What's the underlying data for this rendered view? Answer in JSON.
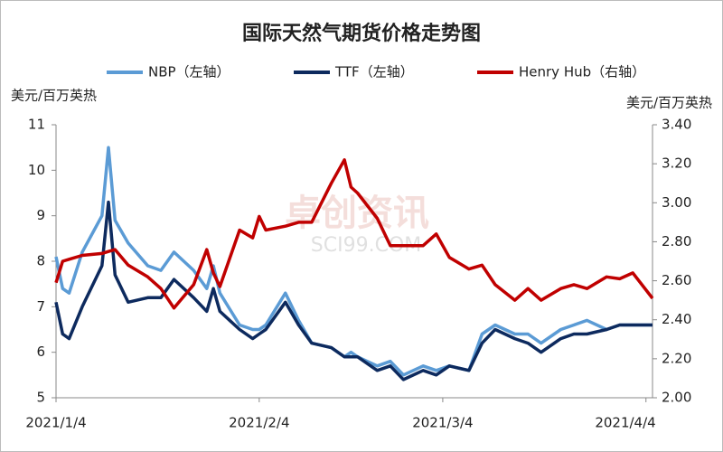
{
  "chart_data": {
    "type": "line",
    "title": "国际天然气期货价格走势图",
    "ylabel": "美元/百万英热",
    "y2label": "美元/百万英热",
    "watermark": [
      "卓创资讯",
      "SCI99.COM"
    ],
    "x": [
      "2021/1/4",
      "2021/1/5",
      "2021/1/6",
      "2021/1/8",
      "2021/1/11",
      "2021/1/12",
      "2021/1/13",
      "2021/1/15",
      "2021/1/18",
      "2021/1/20",
      "2021/1/22",
      "2021/1/25",
      "2021/1/27",
      "2021/1/28",
      "2021/1/29",
      "2021/2/1",
      "2021/2/3",
      "2021/2/4",
      "2021/2/5",
      "2021/2/8",
      "2021/2/10",
      "2021/2/12",
      "2021/2/15",
      "2021/2/17",
      "2021/2/18",
      "2021/2/19",
      "2021/2/22",
      "2021/2/24",
      "2021/2/26",
      "2021/3/1",
      "2021/3/3",
      "2021/3/5",
      "2021/3/8",
      "2021/3/10",
      "2021/3/12",
      "2021/3/15",
      "2021/3/17",
      "2021/3/19",
      "2021/3/22",
      "2021/3/24",
      "2021/3/26",
      "2021/3/29",
      "2021/3/31",
      "2021/4/2",
      "2021/4/5"
    ],
    "xlim": [
      "2021/1/4",
      "2021/4/5"
    ],
    "xticks": [
      "2021/1/4",
      "2021/2/4",
      "2021/3/4",
      "2021/4/4"
    ],
    "series": [
      {
        "name": "NBP（左轴）",
        "color": "#5b9bd5",
        "axis": "y",
        "values": [
          8.1,
          7.4,
          7.3,
          8.2,
          9.0,
          10.5,
          8.9,
          8.4,
          7.9,
          7.8,
          8.2,
          7.8,
          7.4,
          7.9,
          7.3,
          6.6,
          6.5,
          6.5,
          6.6,
          7.3,
          6.7,
          6.2,
          6.1,
          5.9,
          6.0,
          5.9,
          5.7,
          5.8,
          5.5,
          5.7,
          5.6,
          5.7,
          5.6,
          6.4,
          6.6,
          6.4,
          6.4,
          6.2,
          6.5,
          6.6,
          6.7,
          6.5,
          6.6,
          6.6,
          6.6
        ]
      },
      {
        "name": "TTF（左轴）",
        "color": "#0d2a5e",
        "axis": "y",
        "values": [
          7.1,
          6.4,
          6.3,
          7.0,
          7.9,
          9.3,
          7.7,
          7.1,
          7.2,
          7.2,
          7.6,
          7.2,
          6.9,
          7.4,
          6.9,
          6.5,
          6.3,
          6.4,
          6.5,
          7.1,
          6.6,
          6.2,
          6.1,
          5.9,
          5.9,
          5.9,
          5.6,
          5.7,
          5.4,
          5.6,
          5.5,
          5.7,
          5.6,
          6.2,
          6.5,
          6.3,
          6.2,
          6.0,
          6.3,
          6.4,
          6.4,
          6.5,
          6.6,
          6.6,
          6.6
        ]
      },
      {
        "name": "Henry Hub（右轴）",
        "color": "#c00000",
        "axis": "y2",
        "values": [
          2.59,
          2.7,
          2.71,
          2.73,
          2.74,
          2.75,
          2.76,
          2.68,
          2.62,
          2.56,
          2.46,
          2.58,
          2.76,
          2.64,
          2.57,
          2.86,
          2.82,
          2.93,
          2.86,
          2.88,
          2.9,
          2.9,
          3.1,
          3.22,
          3.08,
          3.05,
          2.92,
          2.78,
          2.78,
          2.78,
          2.84,
          2.72,
          2.66,
          2.68,
          2.58,
          2.5,
          2.56,
          2.5,
          2.56,
          2.58,
          2.56,
          2.62,
          2.61,
          2.64,
          2.51
        ]
      }
    ],
    "ylim": [
      5,
      11
    ],
    "yticks": [
      5,
      6,
      7,
      8,
      9,
      10,
      11
    ],
    "y2lim": [
      2.0,
      3.4
    ],
    "y2ticks": [
      {
        "value": 2.0,
        "label": "2.00"
      },
      {
        "value": 2.2,
        "label": "2.20"
      },
      {
        "value": 2.4,
        "label": "2.40"
      },
      {
        "value": 2.6,
        "label": "2.60"
      },
      {
        "value": 2.8,
        "label": "2.80"
      },
      {
        "value": 3.0,
        "label": "3.00"
      },
      {
        "value": 3.2,
        "label": "3.20"
      },
      {
        "value": 3.4,
        "label": "3.40"
      }
    ],
    "grid": false
  }
}
